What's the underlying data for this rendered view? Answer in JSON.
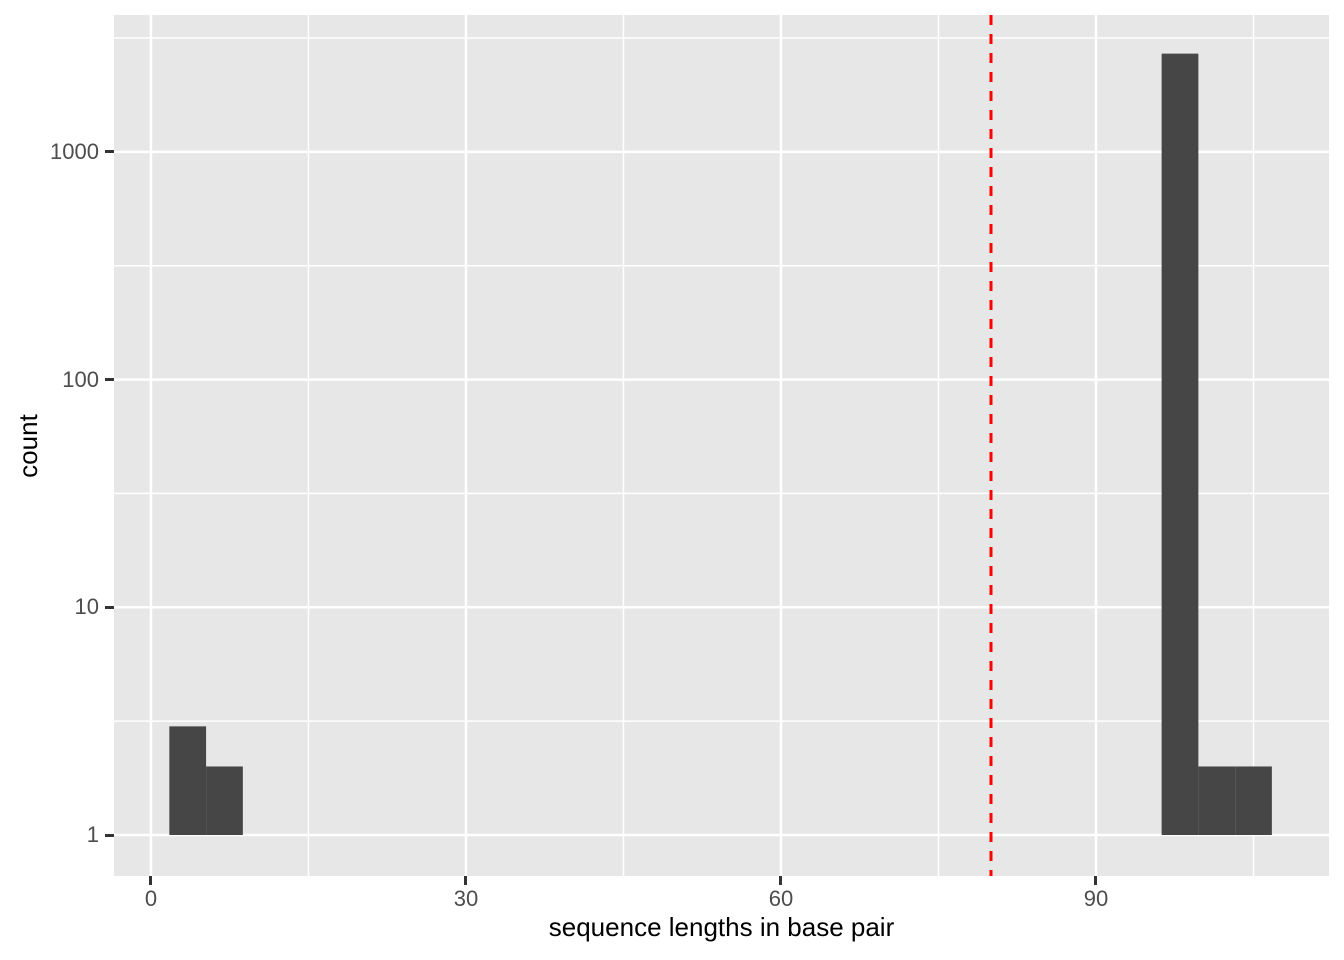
{
  "chart_data": {
    "type": "bar",
    "subtype": "histogram",
    "title": "",
    "xlabel": "sequence lengths in base pair",
    "ylabel": "count",
    "x_scale": "linear",
    "y_scale": "log10",
    "x_ticks": [
      0,
      30,
      60,
      90
    ],
    "x_minor_ticks": [
      15,
      45,
      75,
      105
    ],
    "y_ticks": [
      1,
      10,
      100,
      1000
    ],
    "y_minor_ticks": [
      3.1623,
      31.623,
      316.23,
      3162.3
    ],
    "xlim": [
      -3.52,
      112.19
    ],
    "ylim_log10": [
      -0.18,
      3.601
    ],
    "bin_width": 3.5,
    "bins": [
      {
        "x0": 1.75,
        "x1": 5.25,
        "count": 3
      },
      {
        "x0": 5.25,
        "x1": 8.75,
        "count": 2
      },
      {
        "x0": 96.25,
        "x1": 99.75,
        "count": 2700
      },
      {
        "x0": 99.75,
        "x1": 103.25,
        "count": 2
      },
      {
        "x0": 103.25,
        "x1": 106.75,
        "count": 2
      }
    ],
    "vline": {
      "x": 80,
      "style": "dashed",
      "color": "#FF0000"
    },
    "legend": "none",
    "grid": "on",
    "colors": {
      "bar_fill": "#464646",
      "panel_background": "#E7E7E7",
      "gridline": "#FFFFFF",
      "tick_label": "#4D4D4D",
      "tick_mark": "#333333",
      "axis_title": "#000000",
      "figure_background": "#FFFFFF"
    }
  }
}
